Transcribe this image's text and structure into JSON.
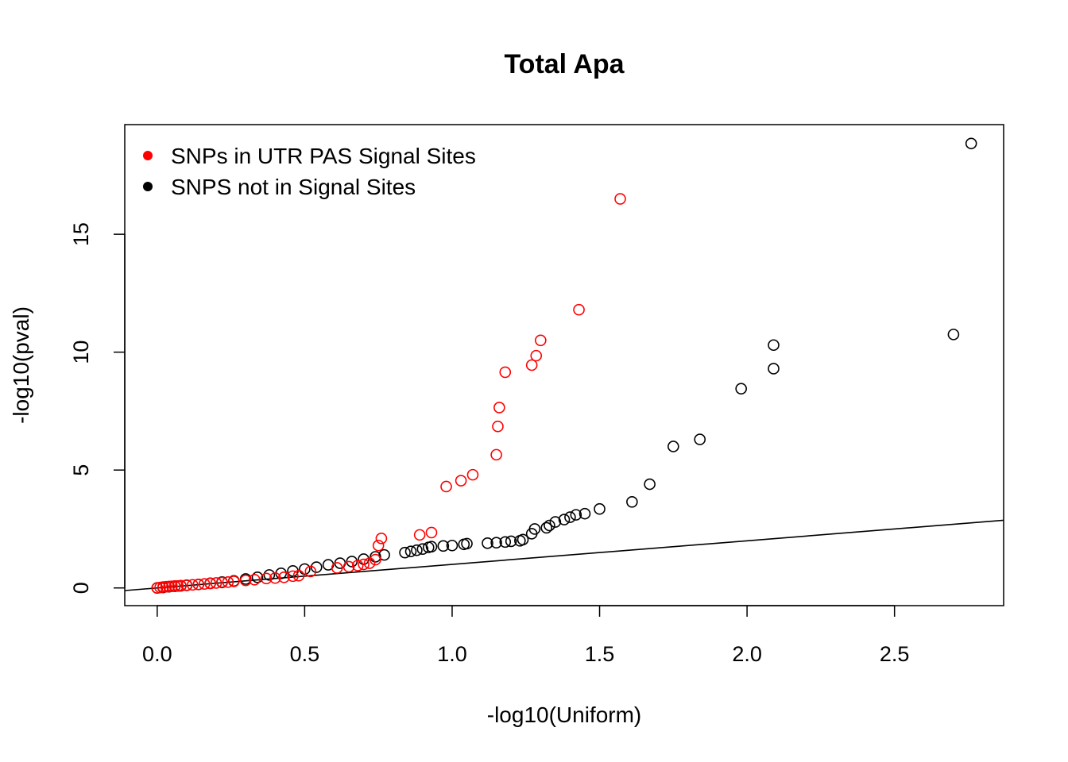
{
  "chart_data": {
    "type": "scatter",
    "title": "Total Apa",
    "xlabel": "-log10(Uniform)",
    "ylabel": "-log10(pval)",
    "xlim": [
      -0.11,
      2.87
    ],
    "ylim": [
      -0.75,
      19.65
    ],
    "x_ticks": [
      0.0,
      0.5,
      1.0,
      1.5,
      2.0,
      2.5
    ],
    "x_tick_labels": [
      "0.0",
      "0.5",
      "1.0",
      "1.5",
      "2.0",
      "2.5"
    ],
    "y_ticks": [
      0,
      5,
      10,
      15
    ],
    "y_tick_labels": [
      "0",
      "5",
      "10",
      "15"
    ],
    "reference_line": {
      "intercept": 0,
      "slope": 1
    },
    "legend_position": "top-left",
    "series": [
      {
        "name": "SNPs in UTR PAS Signal Sites",
        "color": "#ff0000",
        "points": [
          [
            0.0,
            0.0
          ],
          [
            0.01,
            0.02
          ],
          [
            0.02,
            0.04
          ],
          [
            0.03,
            0.05
          ],
          [
            0.04,
            0.06
          ],
          [
            0.05,
            0.07
          ],
          [
            0.06,
            0.08
          ],
          [
            0.07,
            0.08
          ],
          [
            0.08,
            0.1
          ],
          [
            0.1,
            0.12
          ],
          [
            0.12,
            0.13
          ],
          [
            0.14,
            0.15
          ],
          [
            0.16,
            0.17
          ],
          [
            0.18,
            0.19
          ],
          [
            0.2,
            0.21
          ],
          [
            0.22,
            0.23
          ],
          [
            0.24,
            0.25
          ],
          [
            0.26,
            0.28
          ],
          [
            0.3,
            0.32
          ],
          [
            0.33,
            0.35
          ],
          [
            0.37,
            0.4
          ],
          [
            0.4,
            0.42
          ],
          [
            0.43,
            0.45
          ],
          [
            0.46,
            0.5
          ],
          [
            0.48,
            0.52
          ],
          [
            0.52,
            0.7
          ],
          [
            0.61,
            0.85
          ],
          [
            0.65,
            0.9
          ],
          [
            0.68,
            0.95
          ],
          [
            0.7,
            1.0
          ],
          [
            0.72,
            1.05
          ],
          [
            0.74,
            1.2
          ],
          [
            0.75,
            1.8
          ],
          [
            0.76,
            2.1
          ],
          [
            0.89,
            2.25
          ],
          [
            0.93,
            2.35
          ],
          [
            0.98,
            4.3
          ],
          [
            1.03,
            4.55
          ],
          [
            1.07,
            4.8
          ],
          [
            1.15,
            5.65
          ],
          [
            1.155,
            6.85
          ],
          [
            1.16,
            7.65
          ],
          [
            1.18,
            9.15
          ],
          [
            1.27,
            9.45
          ],
          [
            1.285,
            9.85
          ],
          [
            1.3,
            10.5
          ],
          [
            1.43,
            11.8
          ],
          [
            1.57,
            16.5
          ]
        ]
      },
      {
        "name": "SNPS not in Signal Sites",
        "color": "#000000",
        "points": [
          [
            0.0,
            0.0
          ],
          [
            0.02,
            0.02
          ],
          [
            0.04,
            0.05
          ],
          [
            0.06,
            0.07
          ],
          [
            0.08,
            0.09
          ],
          [
            0.1,
            0.11
          ],
          [
            0.14,
            0.15
          ],
          [
            0.18,
            0.2
          ],
          [
            0.22,
            0.25
          ],
          [
            0.26,
            0.3
          ],
          [
            0.3,
            0.38
          ],
          [
            0.34,
            0.45
          ],
          [
            0.38,
            0.55
          ],
          [
            0.42,
            0.62
          ],
          [
            0.46,
            0.72
          ],
          [
            0.5,
            0.8
          ],
          [
            0.54,
            0.88
          ],
          [
            0.58,
            0.98
          ],
          [
            0.62,
            1.05
          ],
          [
            0.66,
            1.12
          ],
          [
            0.7,
            1.22
          ],
          [
            0.74,
            1.32
          ],
          [
            0.77,
            1.4
          ],
          [
            0.84,
            1.5
          ],
          [
            0.86,
            1.55
          ],
          [
            0.88,
            1.6
          ],
          [
            0.9,
            1.65
          ],
          [
            0.92,
            1.72
          ],
          [
            0.93,
            1.75
          ],
          [
            0.97,
            1.78
          ],
          [
            1.0,
            1.8
          ],
          [
            1.04,
            1.85
          ],
          [
            1.05,
            1.88
          ],
          [
            1.12,
            1.9
          ],
          [
            1.15,
            1.92
          ],
          [
            1.18,
            1.95
          ],
          [
            1.2,
            1.98
          ],
          [
            1.23,
            2.0
          ],
          [
            1.24,
            2.05
          ],
          [
            1.27,
            2.3
          ],
          [
            1.28,
            2.5
          ],
          [
            1.32,
            2.55
          ],
          [
            1.33,
            2.65
          ],
          [
            1.35,
            2.8
          ],
          [
            1.38,
            2.9
          ],
          [
            1.4,
            3.0
          ],
          [
            1.42,
            3.1
          ],
          [
            1.45,
            3.15
          ],
          [
            1.5,
            3.35
          ],
          [
            1.61,
            3.65
          ],
          [
            1.67,
            4.4
          ],
          [
            1.75,
            6.0
          ],
          [
            1.84,
            6.3
          ],
          [
            1.98,
            8.45
          ],
          [
            2.09,
            9.3
          ],
          [
            2.09,
            10.3
          ],
          [
            2.7,
            10.75
          ],
          [
            2.76,
            18.85
          ]
        ]
      }
    ]
  }
}
